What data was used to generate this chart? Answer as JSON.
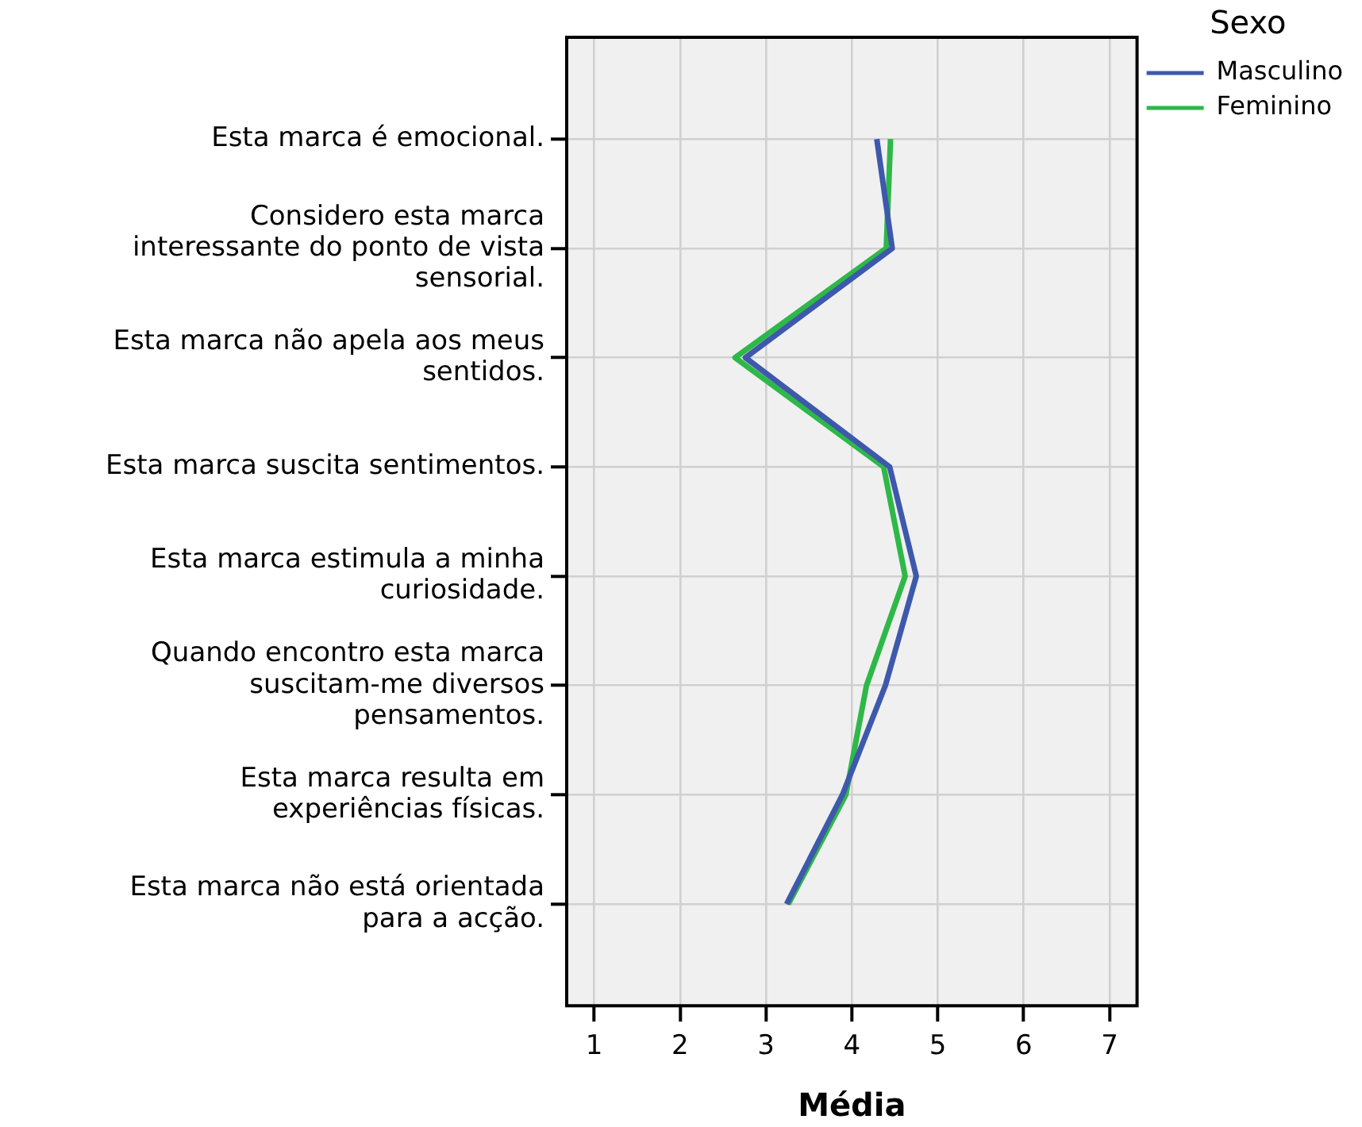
{
  "chart_data": {
    "type": "line",
    "orientation": "horizontal",
    "xlabel": "Média",
    "legend_title": "Sexo",
    "legend": "top right",
    "grid": true,
    "marker": "none",
    "categories": [
      "Esta marca é emocional.",
      "Considero esta marca interessante do ponto de vista sensorial.",
      "Esta marca não apela aos meus sentidos.",
      "Esta marca suscita sentimentos.",
      "Esta marca estimula a minha curiosidade.",
      "Quando encontro esta marca suscitam-me diversos pensamentos.",
      "Esta marca resulta em experiências físicas.",
      "Esta marca não está orientada para a acção."
    ],
    "xlim": [
      0.68,
      7.32
    ],
    "xticks": [
      1,
      2,
      3,
      4,
      5,
      6,
      7
    ],
    "series": [
      {
        "name": "Masculino",
        "color": "#3e58ac",
        "values": [
          4.29,
          4.47,
          2.76,
          4.44,
          4.75,
          4.39,
          3.89,
          3.24
        ]
      },
      {
        "name": "Feminino",
        "color": "#2eb848",
        "values": [
          4.45,
          4.4,
          2.64,
          4.37,
          4.62,
          4.17,
          3.93,
          3.26
        ]
      }
    ]
  }
}
